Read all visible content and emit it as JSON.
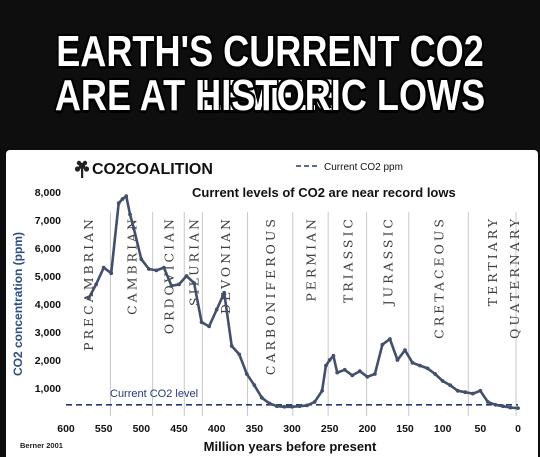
{
  "headline": {
    "line1": "EARTH'S CURRENT CO2 LEVELS",
    "line2": "ARE AT HISTORIC LOWS"
  },
  "brand": {
    "logo_text": "CO2COALITION",
    "logo_icon": "tree-icon"
  },
  "source_note": "Berner 2001",
  "current_level_label": "Current CO2 level",
  "colors": {
    "series": "#44506b",
    "current_line": "#263a7a",
    "period_text": "#3f3f3f",
    "separator": "#c8c8c8"
  },
  "chart_data": {
    "type": "line",
    "title": "Current levels of CO2 are near record lows",
    "xlabel": "Million years before present",
    "ylabel": "CO2 concentration (ppm)",
    "xlim": [
      600,
      0
    ],
    "ylim": [
      0,
      8500
    ],
    "x_ticks": [
      600,
      550,
      500,
      450,
      400,
      350,
      300,
      250,
      200,
      150,
      100,
      50,
      0
    ],
    "y_ticks": [
      1000,
      2000,
      3000,
      4000,
      5000,
      6000,
      7000,
      8000
    ],
    "y_tick_labels": [
      "1,000",
      "2,000",
      "3,000",
      "4,000",
      "5,000",
      "6,000",
      "7,000",
      "8,000"
    ],
    "legend": [
      {
        "label": "Current CO2 ppm",
        "style": "dashed"
      }
    ],
    "legend_position": "top-right",
    "grid": false,
    "series": [
      {
        "x": [
          570,
          560,
          550,
          540,
          530,
          525,
          520,
          515,
          510,
          500,
          490,
          480,
          470,
          460,
          450,
          440,
          430,
          420,
          410,
          400,
          390,
          380,
          370,
          360,
          350,
          340,
          330,
          320,
          310,
          300,
          290,
          280,
          270,
          260,
          255,
          250,
          245,
          240,
          230,
          220,
          210,
          200,
          190,
          180,
          170,
          160,
          150,
          140,
          130,
          120,
          110,
          100,
          90,
          80,
          70,
          60,
          50,
          40,
          30,
          20,
          10,
          0
        ],
        "y": [
          4200,
          4700,
          5300,
          5100,
          7600,
          7750,
          7850,
          7200,
          6700,
          5600,
          5250,
          5200,
          5300,
          4650,
          4700,
          5000,
          4750,
          3350,
          3200,
          3800,
          4400,
          2500,
          2200,
          1500,
          1100,
          650,
          450,
          350,
          330,
          330,
          350,
          380,
          500,
          900,
          1800,
          2000,
          2150,
          1550,
          1650,
          1450,
          1600,
          1400,
          1500,
          2550,
          2750,
          2000,
          2350,
          1900,
          1800,
          1700,
          1500,
          1250,
          1100,
          900,
          850,
          800,
          900,
          500,
          400,
          350,
          300,
          280
        ]
      }
    ],
    "current_level_ppm": 400,
    "periods": [
      "PRECAMBRIAN",
      "CAMBRIAN",
      "ORDOVICIAN",
      "SILURIAN",
      "DEVONIAN",
      "CARBONIFEROUS",
      "PERMIAN",
      "TRIASSIC",
      "JURASSIC",
      "CRETACEOUS",
      "TERTIARY",
      "QUATERNARY"
    ],
    "period_boundaries": [
      541,
      485,
      443,
      419,
      359,
      299,
      252,
      201,
      145,
      66,
      2.6
    ]
  }
}
